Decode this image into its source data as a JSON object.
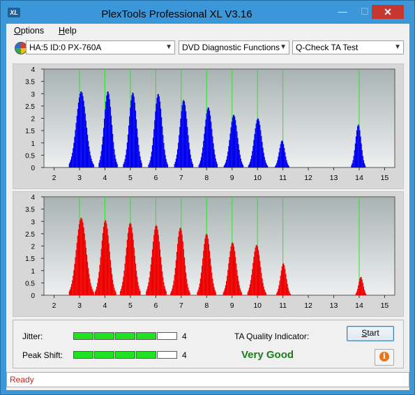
{
  "window": {
    "title": "PlexTools Professional XL V3.16",
    "icon_text": "XL"
  },
  "menu": [
    {
      "label": "Options",
      "accel": "O",
      "rest": "ptions"
    },
    {
      "label": "Help",
      "accel": "H",
      "rest": "elp"
    }
  ],
  "toolbar": {
    "drive": "HA:5 ID:0  PX-760A",
    "function": "DVD Diagnostic Functions",
    "test": "Q-Check TA Test"
  },
  "colors": {
    "top_series": "#0000ee",
    "bottom_series": "#ee0000",
    "grid_vertical": "#33dd33",
    "plot_bg_top": "#a9b3b3",
    "plot_bg_bottom": "#eef0f0"
  },
  "chart_data": [
    {
      "type": "bar",
      "xlim": [
        1.6,
        15.4
      ],
      "ylim": [
        0,
        4
      ],
      "xticks": [
        "2",
        "3",
        "4",
        "5",
        "6",
        "7",
        "8",
        "9",
        "10",
        "11",
        "12",
        "13",
        "14",
        "15"
      ],
      "yticks": [
        "0",
        "0.5",
        "1",
        "1.5",
        "2",
        "2.5",
        "3",
        "3.5",
        "4"
      ],
      "vertical_gridlines": [
        3,
        4,
        5,
        6,
        7,
        8,
        9,
        10,
        11,
        14
      ],
      "series_color": "#0000ee",
      "peaks": [
        {
          "center": 3.05,
          "height": 3.1,
          "width": 0.26
        },
        {
          "center": 4.1,
          "height": 3.1,
          "width": 0.2
        },
        {
          "center": 5.08,
          "height": 3.05,
          "width": 0.2
        },
        {
          "center": 6.08,
          "height": 3.0,
          "width": 0.2
        },
        {
          "center": 7.08,
          "height": 2.75,
          "width": 0.2
        },
        {
          "center": 8.05,
          "height": 2.45,
          "width": 0.2
        },
        {
          "center": 9.05,
          "height": 2.15,
          "width": 0.2
        },
        {
          "center": 10.0,
          "height": 2.0,
          "width": 0.2
        },
        {
          "center": 10.95,
          "height": 1.1,
          "width": 0.15
        },
        {
          "center": 13.95,
          "height": 1.75,
          "width": 0.15
        }
      ]
    },
    {
      "type": "bar",
      "xlim": [
        1.6,
        15.4
      ],
      "ylim": [
        0,
        4
      ],
      "xticks": [
        "2",
        "3",
        "4",
        "5",
        "6",
        "7",
        "8",
        "9",
        "10",
        "11",
        "12",
        "13",
        "14",
        "15"
      ],
      "yticks": [
        "0",
        "0.5",
        "1",
        "1.5",
        "2",
        "2.5",
        "3",
        "3.5",
        "4"
      ],
      "vertical_gridlines": [
        3,
        4,
        5,
        6,
        7,
        8,
        9,
        10,
        11,
        14
      ],
      "series_color": "#ee0000",
      "peaks": [
        {
          "center": 3.05,
          "height": 3.15,
          "width": 0.26
        },
        {
          "center": 4.0,
          "height": 3.05,
          "width": 0.22
        },
        {
          "center": 4.98,
          "height": 2.95,
          "width": 0.22
        },
        {
          "center": 6.0,
          "height": 2.85,
          "width": 0.22
        },
        {
          "center": 6.95,
          "height": 2.75,
          "width": 0.2
        },
        {
          "center": 7.98,
          "height": 2.5,
          "width": 0.2
        },
        {
          "center": 9.0,
          "height": 2.15,
          "width": 0.2
        },
        {
          "center": 9.95,
          "height": 2.05,
          "width": 0.2
        },
        {
          "center": 11.0,
          "height": 1.3,
          "width": 0.15
        },
        {
          "center": 14.05,
          "height": 0.75,
          "width": 0.12
        }
      ]
    }
  ],
  "metrics": {
    "jitter_label": "Jitter:",
    "jitter_level": 4,
    "jitter_value": "4",
    "peak_shift_label": "Peak Shift:",
    "peak_shift_level": 4,
    "peak_shift_value": "4",
    "segments_total": 5
  },
  "ta_quality": {
    "label": "TA Quality Indicator:",
    "value": "Very Good"
  },
  "buttons": {
    "start": "Start",
    "start_accel": "S",
    "start_rest": "tart"
  },
  "status": "Ready"
}
